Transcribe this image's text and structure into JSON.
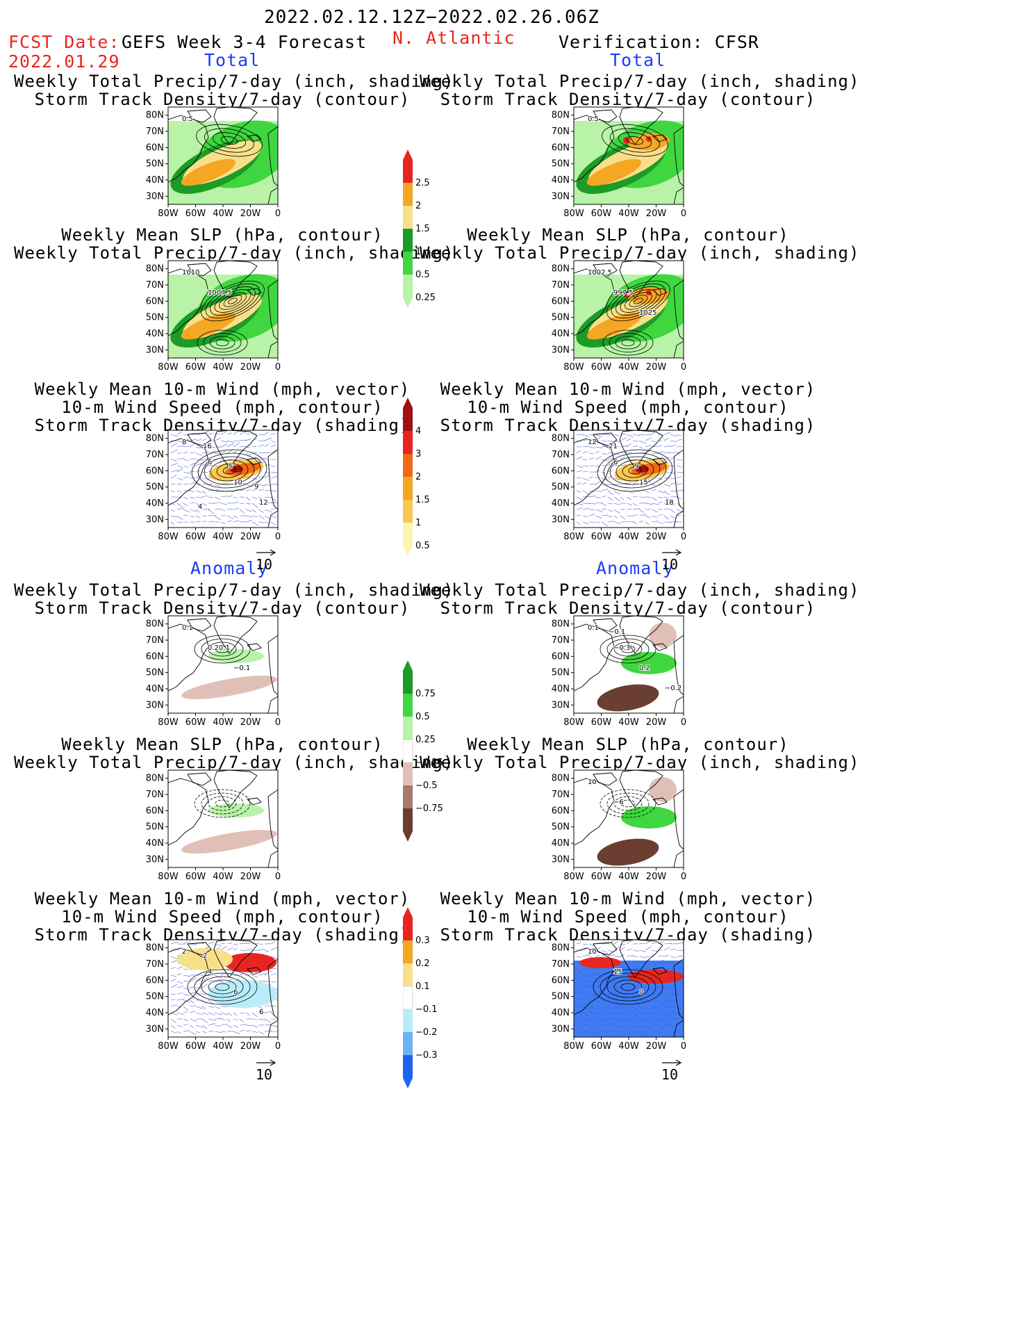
{
  "header": {
    "period": "2022.02.12.12Z−2022.02.26.06Z",
    "fcst_label": "FCST Date:",
    "fcst_date": "2022.01.29",
    "product": "GEFS Week 3-4 Forecast",
    "region": "N. Atlantic",
    "verification": "Verification: CFSR"
  },
  "sections": {
    "total": "Total",
    "anomaly": "Anomaly"
  },
  "titles": {
    "precip_track": [
      "Weekly Total Precip/7-day (inch, shading)",
      "Storm Track Density/7-day (contour)"
    ],
    "slp_precip": [
      "Weekly Mean SLP (hPa, contour)",
      "Weekly Total Precip/7-day (inch, shading)"
    ],
    "wind": [
      "Weekly Mean 10-m Wind (mph, vector)",
      "10-m Wind Speed (mph, contour)",
      "Storm Track Density/7-day (shading)"
    ]
  },
  "axes": {
    "lat": [
      "80N",
      "70N",
      "60N",
      "50N",
      "40N",
      "30N"
    ],
    "lon": [
      "80W",
      "60W",
      "40W",
      "20W",
      "0"
    ]
  },
  "vector_ref": "10",
  "colorbars": {
    "precip_total": {
      "labels": [
        "2.5",
        "2",
        "1.5",
        "1",
        "0.5",
        "0.25"
      ],
      "colors": [
        "#e8261f",
        "#f5a623",
        "#f8e08a",
        "#1e9a27",
        "#3fd63f",
        "#b8f3a8"
      ]
    },
    "track_total": {
      "labels": [
        "4",
        "3",
        "2",
        "1.5",
        "1",
        "0.5"
      ],
      "colors": [
        "#a01010",
        "#e8261f",
        "#f06a14",
        "#f5a623",
        "#f8c850",
        "#fdf5b0"
      ]
    },
    "precip_anom": {
      "labels": [
        "0.75",
        "0.5",
        "0.25",
        "−0.25",
        "−0.5",
        "−0.75"
      ],
      "colors": [
        "#1e9a27",
        "#3fd63f",
        "#b8f3a8",
        "#ffffff",
        "#e0c0b6",
        "#a87a6c",
        "#6a3e30"
      ]
    },
    "track_anom": {
      "labels": [
        "0.3",
        "0.2",
        "0.1",
        "−0.1",
        "−0.2",
        "−0.3"
      ],
      "colors": [
        "#e8261f",
        "#f5a623",
        "#f8e08a",
        "#ffffff",
        "#b8ecf8",
        "#6ab4f5",
        "#1e64f0"
      ]
    }
  },
  "map_labels": {
    "r1_left": [
      "0.5"
    ],
    "r1_right": [
      "0.5"
    ],
    "r2_left": [
      "1010",
      "1007.5"
    ],
    "r2_right": [
      "1002.5",
      "997.5",
      "1025"
    ],
    "r3_left": [
      "8",
      "6",
      "10",
      "12",
      "16",
      "5",
      "9",
      "4"
    ],
    "r3_right": [
      "12",
      "6",
      "15",
      "18",
      "21",
      "9"
    ],
    "r4_left": [
      "0.1",
      "0.20.1",
      "−0.1"
    ],
    "r4_right": [
      "0.1",
      "−0.3",
      "0.2",
      "−0.2",
      "−0.1"
    ],
    "r5_right": [
      "10",
      "−6"
    ],
    "r6_left": [
      "2",
      "4",
      "6",
      "6",
      "2"
    ],
    "r6_right": [
      "10",
      "15",
      "0"
    ]
  }
}
